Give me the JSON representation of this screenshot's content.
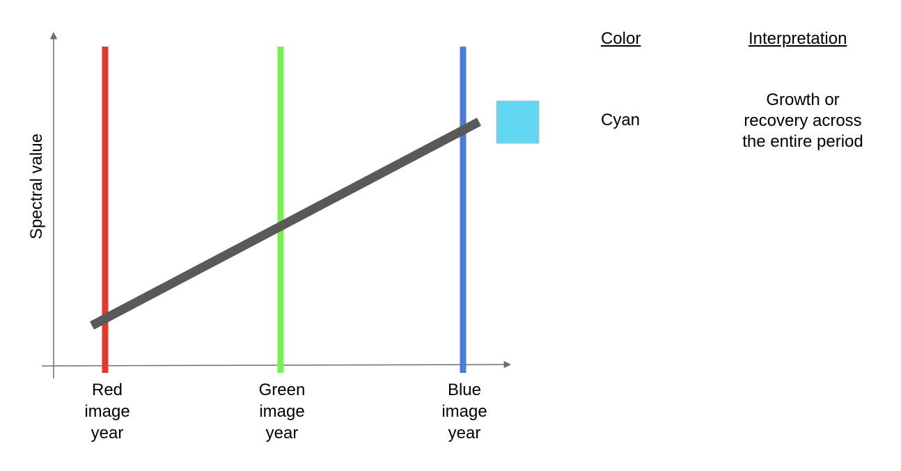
{
  "diagram": {
    "y_axis_label": "Spectral value",
    "x_labels": [
      "Red\nimage\nyear",
      "Green\nimage\nyear",
      "Blue\nimage\nyear"
    ],
    "band_colors": [
      "#e03a2a",
      "#78f04b",
      "#4a7bd6"
    ],
    "trend": {
      "description_values": [
        0.12,
        0.44,
        0.76
      ]
    },
    "trend_color": "#595959",
    "swatch_color": "#62d6f0"
  },
  "legend": {
    "color_header": "Color",
    "interpretation_header": "Interpretation",
    "color_value": "Cyan",
    "interpretation_value": "Growth or\nrecovery across\nthe entire period"
  }
}
